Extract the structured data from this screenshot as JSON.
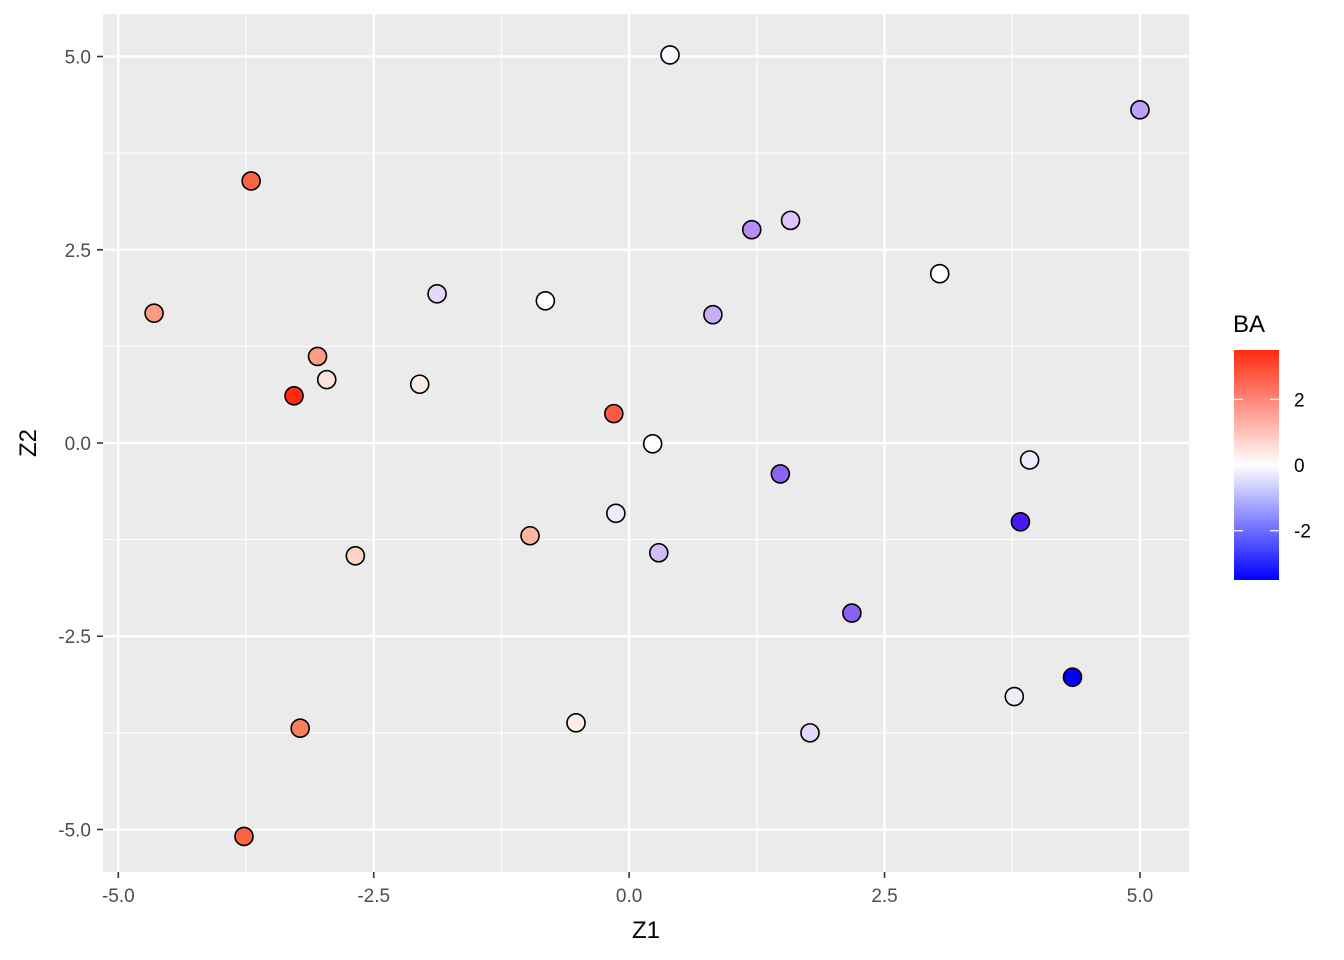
{
  "chart_data": {
    "type": "scatter",
    "title": "",
    "xlabel": "Z1",
    "ylabel": "Z2",
    "xlim": [
      -5.15,
      5.48
    ],
    "ylim": [
      -5.55,
      5.55
    ],
    "x_ticks": [
      -5.0,
      -2.5,
      0.0,
      2.5,
      5.0
    ],
    "x_tick_labels": [
      "-5.0",
      "-2.5",
      "0.0",
      "2.5",
      "5.0"
    ],
    "y_ticks": [
      -5.0,
      -2.5,
      0.0,
      2.5,
      5.0
    ],
    "y_tick_labels": [
      "-5.0",
      "-2.5",
      "0.0",
      "2.5",
      "5.0"
    ],
    "grid": true,
    "panel_background": "#ebebeb",
    "grid_color": "#ffffff",
    "legend": {
      "title": "BA",
      "placement": "right",
      "type": "colorbar",
      "range": [
        -3.5,
        3.5
      ],
      "ticks": [
        2,
        0,
        -2
      ],
      "tick_labels": [
        "2",
        "0",
        "-2"
      ],
      "low_color": "#0000ff",
      "mid_color": "#ffffff",
      "high_color": "#ff2a10"
    },
    "points": [
      {
        "x": 0.4,
        "y": 5.02,
        "color": "#fbf8ff"
      },
      {
        "x": 5.0,
        "y": 4.31,
        "color": "#c09ff8"
      },
      {
        "x": -3.7,
        "y": 3.39,
        "color": "#fb6347"
      },
      {
        "x": 1.2,
        "y": 2.76,
        "color": "#b78cf5"
      },
      {
        "x": 1.58,
        "y": 2.88,
        "color": "#ddc7fa"
      },
      {
        "x": 3.04,
        "y": 2.19,
        "color": "#ffffff"
      },
      {
        "x": -4.65,
        "y": 1.68,
        "color": "#f99b80"
      },
      {
        "x": -1.88,
        "y": 1.93,
        "color": "#e6d8fc"
      },
      {
        "x": -0.82,
        "y": 1.84,
        "color": "#ffffff"
      },
      {
        "x": 0.82,
        "y": 1.66,
        "color": "#c8aefa"
      },
      {
        "x": -3.05,
        "y": 1.12,
        "color": "#fa9e84"
      },
      {
        "x": -2.96,
        "y": 0.82,
        "color": "#fde3d7"
      },
      {
        "x": -2.05,
        "y": 0.76,
        "color": "#feebe3"
      },
      {
        "x": -3.28,
        "y": 0.61,
        "color": "#ff2a10"
      },
      {
        "x": -0.15,
        "y": 0.38,
        "color": "#fb5b40"
      },
      {
        "x": 0.23,
        "y": -0.01,
        "color": "#ffffff"
      },
      {
        "x": 1.48,
        "y": -0.4,
        "color": "#8f63f2"
      },
      {
        "x": 3.92,
        "y": -0.22,
        "color": "#eeebfd"
      },
      {
        "x": -0.13,
        "y": -0.91,
        "color": "#efeafe"
      },
      {
        "x": 3.83,
        "y": -1.02,
        "color": "#4a18f7"
      },
      {
        "x": -0.97,
        "y": -1.2,
        "color": "#fbb69f"
      },
      {
        "x": 0.29,
        "y": -1.42,
        "color": "#d2bbfb"
      },
      {
        "x": -2.68,
        "y": -1.46,
        "color": "#fed5c4"
      },
      {
        "x": 2.18,
        "y": -2.2,
        "color": "#8c5ef2"
      },
      {
        "x": 4.34,
        "y": -3.03,
        "color": "#0000ff"
      },
      {
        "x": 3.77,
        "y": -3.28,
        "color": "#f0eafd"
      },
      {
        "x": -3.22,
        "y": -3.69,
        "color": "#f9805f"
      },
      {
        "x": -0.52,
        "y": -3.62,
        "color": "#feece5"
      },
      {
        "x": 1.77,
        "y": -3.75,
        "color": "#e3d8fc"
      },
      {
        "x": -3.77,
        "y": -5.09,
        "color": "#fa6344"
      }
    ]
  }
}
